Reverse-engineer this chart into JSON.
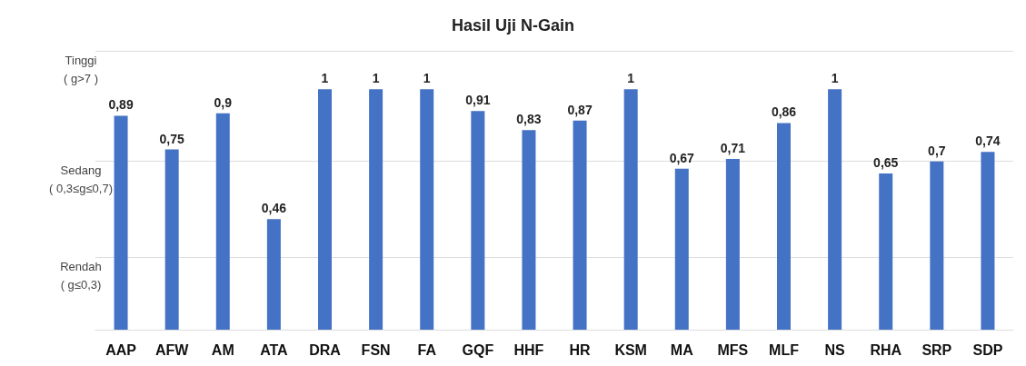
{
  "chart_data": {
    "type": "bar",
    "title": "Hasil Uji N-Gain",
    "categories": [
      "AAP",
      "AFW",
      "AM",
      "ATA",
      "DRA",
      "FSN",
      "FA",
      "GQF",
      "HHF",
      "HR",
      "KSM",
      "MA",
      "MFS",
      "MLF",
      "NS",
      "RHA",
      "SRP",
      "SDP"
    ],
    "values": [
      0.89,
      0.75,
      0.9,
      0.46,
      1,
      1,
      1,
      0.91,
      0.83,
      0.87,
      1,
      0.67,
      0.71,
      0.86,
      1,
      0.65,
      0.7,
      0.74
    ],
    "value_labels": [
      "0,89",
      "0,75",
      "0,9",
      "0,46",
      "1",
      "1",
      "1",
      "0,91",
      "0,83",
      "0,87",
      "1",
      "0,67",
      "0,71",
      "0,86",
      "1",
      "0,65",
      "0,7",
      "0,74"
    ],
    "color": "#4472c4",
    "ylim": [
      0,
      1.16
    ],
    "ref_lines": [
      {
        "axis": "y",
        "value": 0.3,
        "label": "Rendah\n( g≤0,3)",
        "color": "#dddddd"
      },
      {
        "axis": "y",
        "value": 0.7,
        "label": "Sedang\n( 0,3≤g≤0,7)",
        "color": "#dddddd"
      },
      {
        "axis": "y",
        "value": 1.16,
        "label": "Tinggi\n( g>7 )",
        "color": "#dddddd"
      }
    ]
  }
}
